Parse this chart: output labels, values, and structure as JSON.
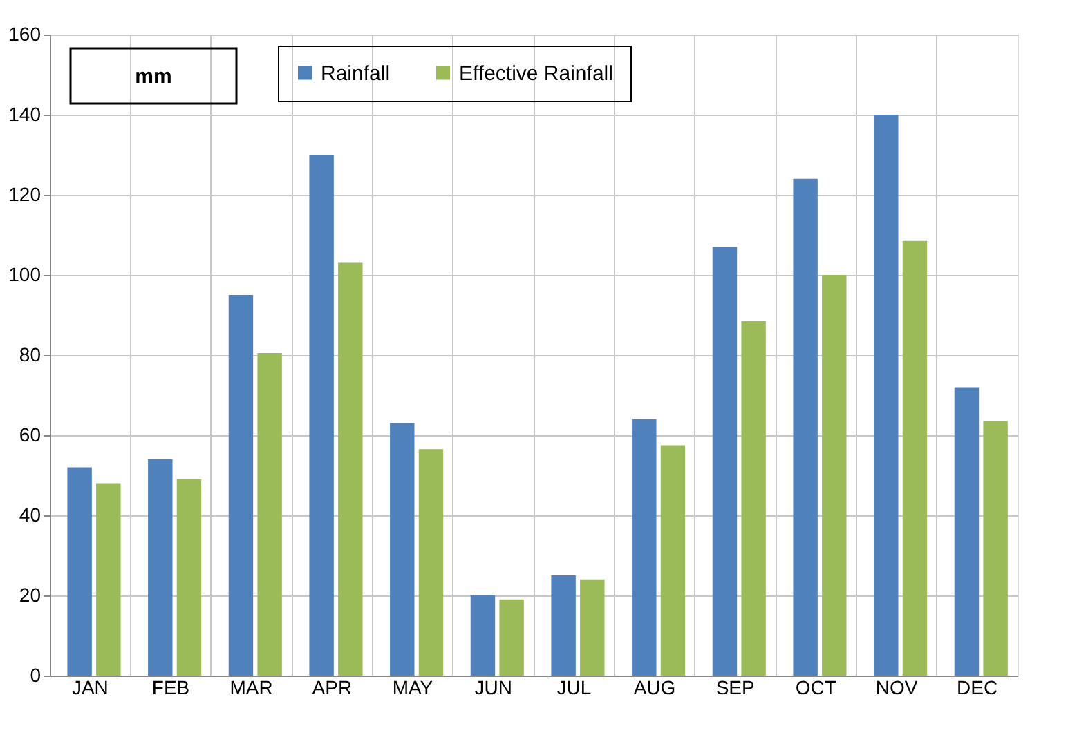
{
  "chart_data": {
    "type": "bar",
    "ylabel": "mm",
    "categories": [
      "JAN",
      "FEB",
      "MAR",
      "APR",
      "MAY",
      "JUN",
      "JUL",
      "AUG",
      "SEP",
      "OCT",
      "NOV",
      "DEC"
    ],
    "series": [
      {
        "name": "Rainfall",
        "color": "#4f81bd",
        "values": [
          52,
          54,
          95,
          130,
          63,
          20,
          25,
          64,
          107,
          124,
          140,
          72
        ]
      },
      {
        "name": "Effective Rainfall",
        "color": "#9bbb59",
        "values": [
          48,
          49,
          80.5,
          103,
          56.5,
          19,
          24,
          57.5,
          88.5,
          100,
          108.5,
          63.5
        ]
      }
    ],
    "ylim": [
      0,
      160
    ],
    "yticks": [
      0,
      20,
      40,
      60,
      80,
      100,
      120,
      140,
      160
    ],
    "grid": true,
    "legend": "top"
  }
}
